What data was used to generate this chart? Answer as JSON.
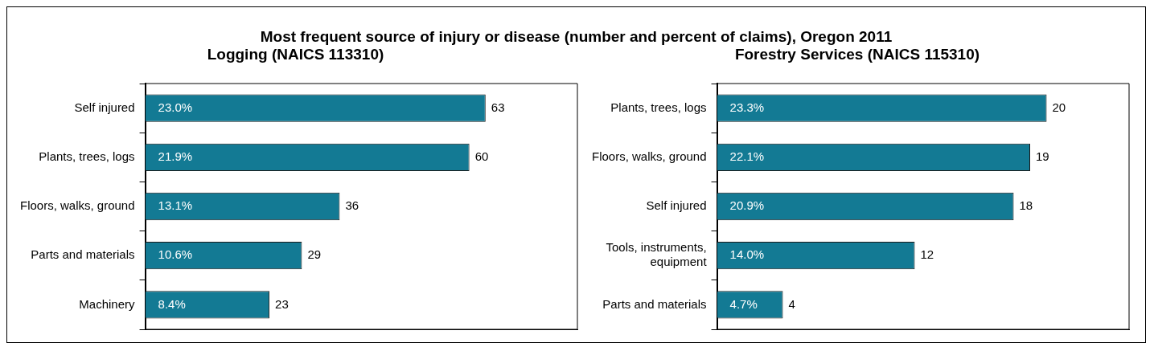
{
  "chart_data": [
    {
      "type": "bar",
      "orientation": "horizontal",
      "title": "Most frequent source of injury or disease (number and percent of claims), Oregon 2011",
      "subtitle": "Logging (NAICS 113310)",
      "categories": [
        "Self injured",
        "Plants, trees, logs",
        "Floors, walks, ground",
        "Parts and materials",
        "Machinery"
      ],
      "series": [
        {
          "color": "#137a94",
          "values": [
            63,
            60,
            36,
            29,
            23
          ]
        }
      ],
      "data_labels": true,
      "tick_labels": "y",
      "annotations": [
        "23.0%",
        "21.9%",
        "13.1%",
        "10.6%",
        "8.4%"
      ]
    },
    {
      "type": "bar",
      "orientation": "horizontal",
      "title": "Forestry Services (NAICS 115310)",
      "categories": [
        "Plants, trees, logs",
        "Floors, walks, ground",
        "Self injured",
        "Tools, instruments, equipment",
        "Parts and materials"
      ],
      "series": [
        {
          "color": "#137a94",
          "values": [
            20,
            19,
            18,
            12,
            4
          ]
        }
      ],
      "data_labels": true,
      "tick_labels": "y",
      "annotations": [
        "23.3%",
        "22.1%",
        "20.9%",
        "14.0%",
        "4.7%"
      ]
    }
  ]
}
